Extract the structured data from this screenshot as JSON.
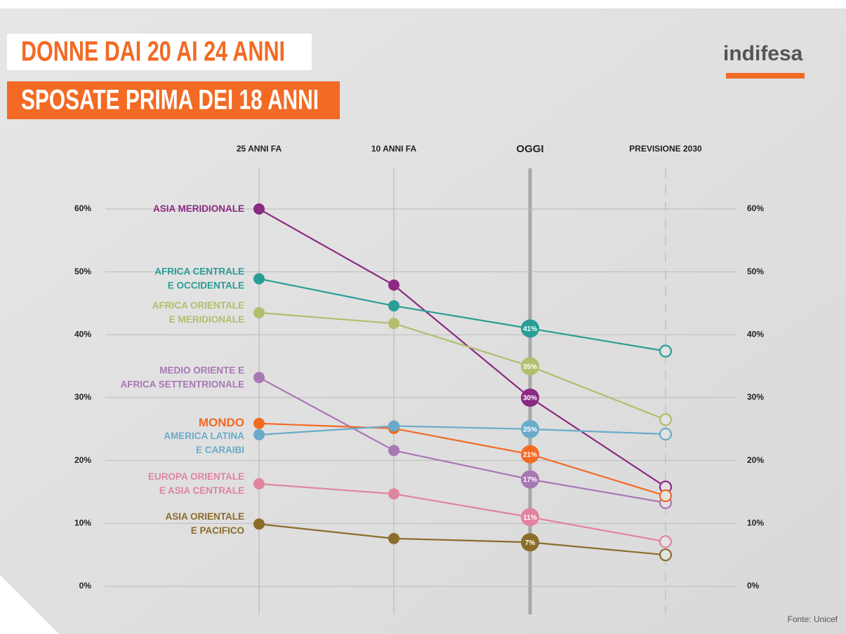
{
  "chart_data": {
    "type": "line",
    "title": "DONNE DAI 20 AI 24 ANNI",
    "subtitle": "SPOSATE PRIMA DEI 18 ANNI",
    "logo": "indifesa",
    "source": "Fonte: Unicef",
    "categories": [
      "25 ANNI FA",
      "10 ANNI FA",
      "OGGI",
      "PREVISIONE 2030"
    ],
    "ylim": [
      0,
      60
    ],
    "yticks": [
      {
        "value": 0,
        "label": "0%"
      },
      {
        "value": 10,
        "label": "10%"
      },
      {
        "value": 20,
        "label": "20%"
      },
      {
        "value": 30,
        "label": "30%"
      },
      {
        "value": 40,
        "label": "40%"
      },
      {
        "value": 50,
        "label": "50%"
      },
      {
        "value": 60,
        "label": "60%"
      }
    ],
    "grid": true,
    "series": [
      {
        "name": "ASIA MERIDIONALE",
        "color": "#8b2a82",
        "values": [
          60,
          47.9,
          30,
          15.8
        ],
        "value_labels": [
          null,
          null,
          "30%",
          null
        ]
      },
      {
        "name": "AFRICA CENTRALE\nE OCCIDENTALE",
        "color": "#2a9d96",
        "values": [
          48.9,
          44.6,
          41,
          37.4
        ],
        "value_labels": [
          null,
          null,
          "41%",
          null
        ]
      },
      {
        "name": "AFRICA ORIENTALE\nE MERIDIONALE",
        "color": "#b3bd6c",
        "values": [
          43.5,
          41.8,
          35,
          26.5
        ],
        "value_labels": [
          null,
          null,
          "35%",
          null
        ]
      },
      {
        "name": "MEDIO ORIENTE E\nAFRICA SETTENTRIONALE",
        "color": "#a878b3",
        "values": [
          33.2,
          21.6,
          17,
          13.3
        ],
        "value_labels": [
          null,
          null,
          "17%",
          null
        ]
      },
      {
        "name": "MONDO",
        "color": "#f26a24",
        "values": [
          25.9,
          25.1,
          21,
          14.4
        ],
        "value_labels": [
          null,
          null,
          "21%",
          null
        ]
      },
      {
        "name": "AMERICA LATINA\nE CARAIBI",
        "color": "#6aabc9",
        "values": [
          24.1,
          25.5,
          25,
          24.2
        ],
        "value_labels": [
          null,
          null,
          "25%",
          null
        ]
      },
      {
        "name": "EUROPA ORIENTALE\nE ASIA CENTRALE",
        "color": "#e0849f",
        "values": [
          16.3,
          14.7,
          11,
          7.1
        ],
        "value_labels": [
          null,
          null,
          "11%",
          null
        ]
      },
      {
        "name": "ASIA ORIENTALE\nE PACIFICO",
        "color": "#8a6d2a",
        "values": [
          9.9,
          7.6,
          7,
          5.0
        ],
        "value_labels": [
          null,
          null,
          "7%",
          null
        ]
      }
    ]
  }
}
